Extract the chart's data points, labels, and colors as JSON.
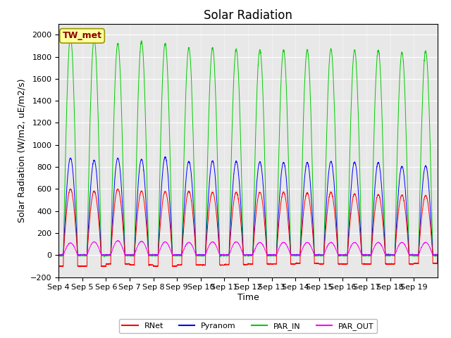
{
  "title": "Solar Radiation",
  "ylabel": "Solar Radiation (W/m2, uE/m2/s)",
  "xlabel": "Time",
  "ylim": [
    -200,
    2100
  ],
  "yticks": [
    -200,
    0,
    200,
    400,
    600,
    800,
    1000,
    1200,
    1400,
    1600,
    1800,
    2000
  ],
  "xtick_labels": [
    "Sep 4",
    "Sep 5",
    "Sep 6",
    "Sep 7",
    "Sep 8",
    "Sep 9",
    "Sep 10",
    "Sep 11",
    "Sep 12",
    "Sep 13",
    "Sep 14",
    "Sep 15",
    "Sep 16",
    "Sep 17",
    "Sep 18",
    "Sep 19"
  ],
  "station_label": "TW_met",
  "legend_entries": [
    "RNet",
    "Pyranom",
    "PAR_IN",
    "PAR_OUT"
  ],
  "colors": [
    "#ff0000",
    "#0000ff",
    "#00cc00",
    "#ff00ff"
  ],
  "fig_bg_color": "#ffffff",
  "plot_bg_color": "#e8e8e8",
  "n_days": 16,
  "points_per_day": 288,
  "peak_rnet": [
    600,
    580,
    600,
    580,
    575,
    580,
    570,
    570,
    570,
    570,
    565,
    570,
    555,
    550,
    545,
    540
  ],
  "peak_pyranom": [
    880,
    860,
    880,
    870,
    890,
    850,
    855,
    850,
    845,
    840,
    840,
    850,
    845,
    840,
    805,
    810
  ],
  "peak_par_in": [
    1980,
    1960,
    1920,
    1940,
    1920,
    1880,
    1880,
    1870,
    1860,
    1860,
    1860,
    1870,
    1860,
    1860,
    1840,
    1850
  ],
  "peak_par_out": [
    110,
    120,
    130,
    125,
    120,
    115,
    120,
    120,
    115,
    115,
    115,
    115,
    115,
    115,
    115,
    115
  ],
  "night_rnet": [
    -100,
    -100,
    -80,
    -90,
    -100,
    -90,
    -90,
    -85,
    -80,
    -80,
    -75,
    -80,
    -80,
    -80,
    -80,
    -75
  ],
  "title_fontsize": 12,
  "label_fontsize": 9,
  "tick_fontsize": 8,
  "station_fontsize": 9,
  "legend_fontsize": 8
}
